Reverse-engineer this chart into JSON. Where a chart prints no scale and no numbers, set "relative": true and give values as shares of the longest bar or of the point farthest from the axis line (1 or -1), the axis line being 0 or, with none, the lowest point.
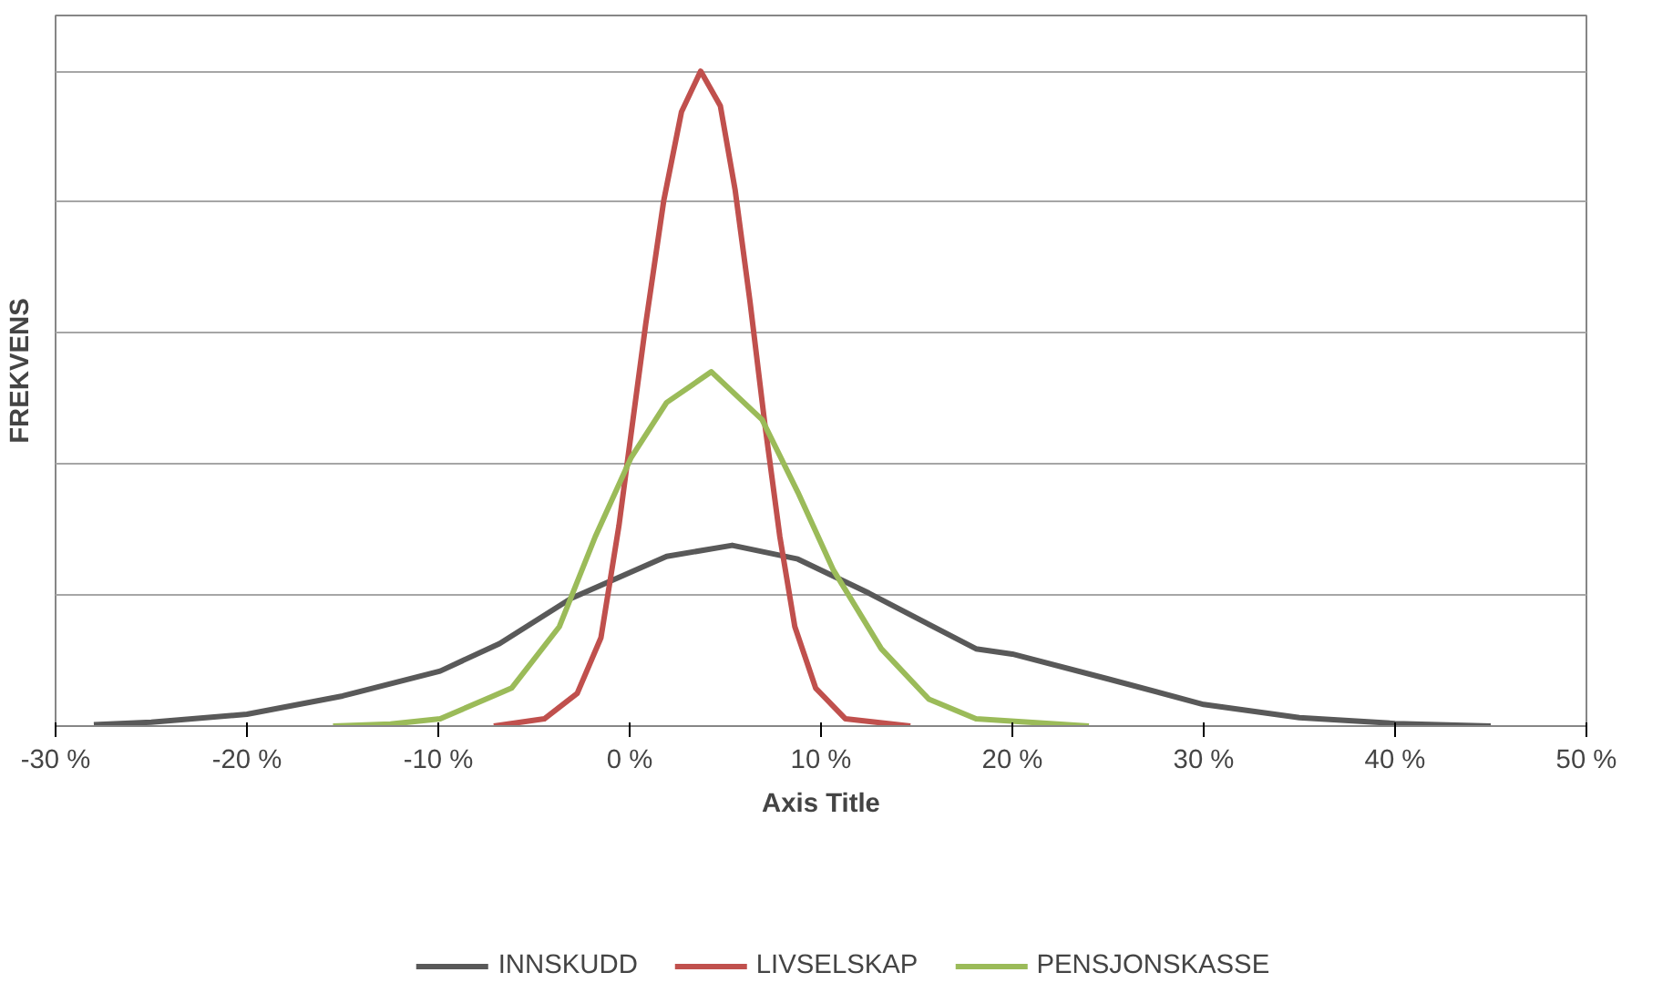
{
  "chart_data": {
    "type": "line",
    "relative": true,
    "xlabel": "Axis Title",
    "ylabel": "FREKVENS",
    "xlim": [
      -30,
      50
    ],
    "xticks": [
      {
        "value": -30,
        "label": "-30 %"
      },
      {
        "value": -20,
        "label": "-20 %"
      },
      {
        "value": -10,
        "label": "-10 %"
      },
      {
        "value": 0,
        "label": "0 %"
      },
      {
        "value": 10,
        "label": "10 %"
      },
      {
        "value": 20,
        "label": "20 %"
      },
      {
        "value": 30,
        "label": "30 %"
      },
      {
        "value": 40,
        "label": "40 %"
      },
      {
        "value": 50,
        "label": "50 %"
      }
    ],
    "grid": "y",
    "legend": "bottom",
    "marker": "none",
    "line_style": "solid",
    "series": [
      {
        "name": "INNSKUDD",
        "color": "#595959",
        "x": [
          -28,
          -25,
          -20,
          -15,
          -9.9,
          -6.8,
          -3.05,
          1.93,
          5.36,
          8.79,
          12.5,
          18.1,
          20,
          25,
          30,
          35,
          40,
          45
        ],
        "values": [
          0.002,
          0.006,
          0.018,
          0.046,
          0.084,
          0.126,
          0.195,
          0.259,
          0.276,
          0.255,
          0.203,
          0.118,
          0.11,
          0.072,
          0.033,
          0.013,
          0.004,
          0
        ]
      },
      {
        "name": "LIVSELSKAP",
        "color": "#c0504d",
        "x": [
          -7.1,
          -4.46,
          -2.74,
          -1.5,
          -0.56,
          0.06,
          0.84,
          1.78,
          2.71,
          3.71,
          4.74,
          5.51,
          6.29,
          7.07,
          7.85,
          8.63,
          9.72,
          11.28,
          14.67
        ],
        "values": [
          0,
          0.011,
          0.05,
          0.135,
          0.306,
          0.443,
          0.614,
          0.802,
          0.938,
          1,
          0.947,
          0.819,
          0.648,
          0.46,
          0.289,
          0.152,
          0.058,
          0.011,
          0
        ]
      },
      {
        "name": "PENSJONSKASSE",
        "color": "#9bbb59",
        "x": [
          -15.5,
          -12.5,
          -9.9,
          -6.17,
          -3.67,
          -1.8,
          0.06,
          1.93,
          4.27,
          6.92,
          8.79,
          10.65,
          13.15,
          15.64,
          18.1,
          24
        ],
        "values": [
          0,
          0.003,
          0.011,
          0.058,
          0.152,
          0.289,
          0.409,
          0.494,
          0.541,
          0.468,
          0.357,
          0.238,
          0.118,
          0.041,
          0.011,
          0
        ]
      }
    ]
  }
}
